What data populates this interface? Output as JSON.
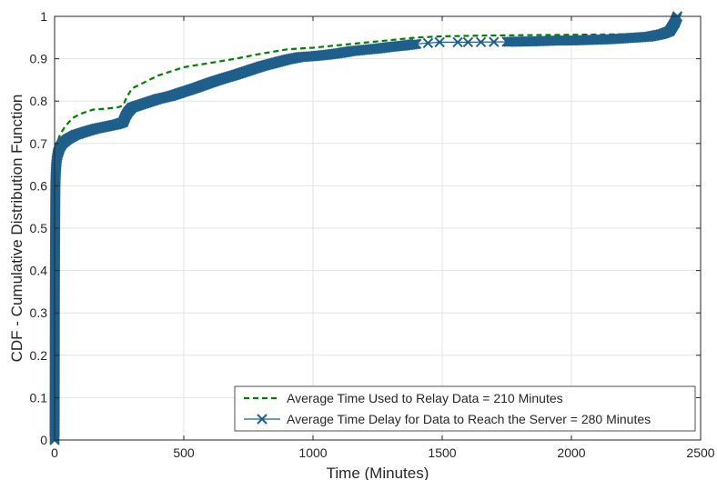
{
  "chart_data": {
    "type": "line",
    "title": "",
    "xlabel": "Time (Minutes)",
    "ylabel": "CDF - Cumulative Distribution Function",
    "xlim": [
      0,
      2500
    ],
    "ylim": [
      0,
      1
    ],
    "grid": true,
    "legend_position": "bottom-right",
    "x_ticks": [
      0,
      500,
      1000,
      1500,
      2000,
      2500
    ],
    "y_ticks": [
      0,
      0.1,
      0.2,
      0.3,
      0.4,
      0.5,
      0.6,
      0.7,
      0.8,
      0.9,
      1
    ],
    "x_tick_labels": [
      "0",
      "500",
      "1000",
      "1500",
      "2000",
      "2500"
    ],
    "y_tick_labels": [
      "0",
      "0.1",
      "0.2",
      "0.3",
      "0.4",
      "0.5",
      "0.6",
      "0.7",
      "0.8",
      "0.9",
      "1"
    ],
    "series": [
      {
        "name": "Average Time Used to Relay Data = 210 Minutes",
        "color": "#008000",
        "style": "dashed",
        "marker": "none",
        "x": [
          0,
          2,
          5,
          10,
          20,
          40,
          70,
          100,
          150,
          200,
          250,
          265,
          280,
          300,
          350,
          400,
          450,
          500,
          550,
          600,
          700,
          800,
          900,
          1000,
          1100,
          1200,
          1300,
          1400,
          1500,
          1700,
          1900,
          2100,
          2250,
          2300,
          2350,
          2380,
          2400,
          2410
        ],
        "y": [
          0.0,
          0.63,
          0.68,
          0.7,
          0.72,
          0.74,
          0.76,
          0.77,
          0.78,
          0.782,
          0.786,
          0.79,
          0.81,
          0.83,
          0.845,
          0.86,
          0.87,
          0.88,
          0.885,
          0.89,
          0.9,
          0.912,
          0.922,
          0.926,
          0.932,
          0.938,
          0.944,
          0.95,
          0.953,
          0.955,
          0.956,
          0.957,
          0.958,
          0.962,
          0.965,
          0.975,
          0.99,
          1.0
        ]
      },
      {
        "name": "Average Time Delay for Data to Reach the Server = 280 Minutes",
        "color": "#1F5F8B",
        "style": "solid",
        "marker": "x",
        "x": [
          0,
          1,
          2,
          3,
          5,
          8,
          12,
          20,
          30,
          50,
          80,
          120,
          160,
          200,
          240,
          265,
          275,
          285,
          300,
          350,
          400,
          450,
          500,
          550,
          600,
          650,
          700,
          750,
          800,
          850,
          900,
          950,
          1000,
          1050,
          1100,
          1150,
          1200,
          1250,
          1300,
          1350,
          1400,
          1490,
          1560,
          1600,
          1750,
          1850,
          1900,
          1950,
          2000,
          2050,
          2100,
          2150,
          2200,
          2250,
          2300,
          2350,
          2380,
          2400,
          2410
        ],
        "y": [
          0.0,
          0.35,
          0.5,
          0.6,
          0.64,
          0.66,
          0.675,
          0.69,
          0.7,
          0.71,
          0.72,
          0.728,
          0.735,
          0.74,
          0.745,
          0.75,
          0.765,
          0.775,
          0.785,
          0.795,
          0.805,
          0.812,
          0.822,
          0.832,
          0.843,
          0.853,
          0.862,
          0.872,
          0.882,
          0.89,
          0.898,
          0.904,
          0.906,
          0.909,
          0.913,
          0.918,
          0.921,
          0.924,
          0.928,
          0.931,
          0.935,
          0.939,
          0.939,
          0.939,
          0.94,
          0.941,
          0.942,
          0.943,
          0.943,
          0.944,
          0.945,
          0.946,
          0.948,
          0.95,
          0.952,
          0.958,
          0.965,
          0.985,
          1.0
        ]
      }
    ]
  }
}
